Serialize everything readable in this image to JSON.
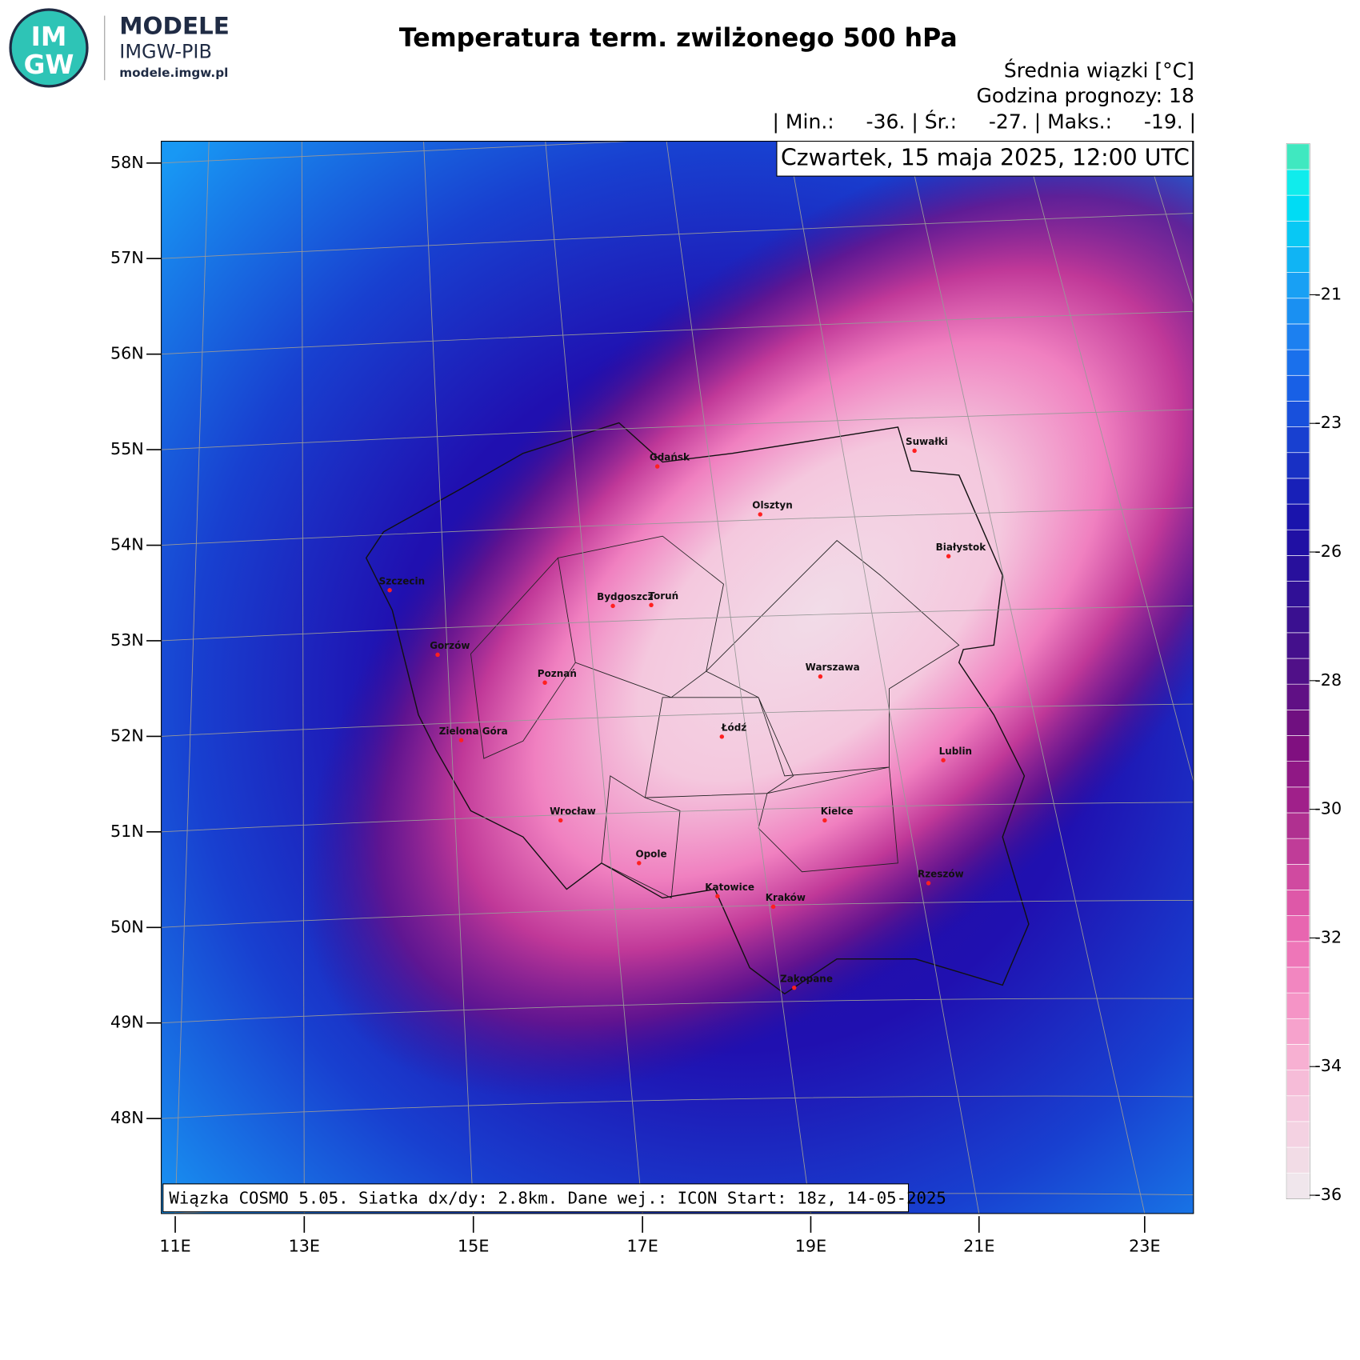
{
  "logo": {
    "abbr_top": "IM",
    "abbr_bottom": "GW",
    "name": "MODELE",
    "org": "IMGW-PIB",
    "url": "modele.imgw.pl"
  },
  "title": "Temperatura term. zwilżonego 500 hPa",
  "unit_line": "Średnia wiązki [°C]",
  "forecast_hour": "Godzina prognozy: 18",
  "stats_line": "| Min.:     -36. | Śr.:     -27. | Maks.:     -19. |",
  "date": "Czwartek, 15 maja 2025, 12:00 UTC",
  "footer": "Wiązka COSMO 5.05. Siatka dx/dy: 2.8km. Dane wej.: ICON Start: 18z, 14-05-2025",
  "lat_labels": [
    "58N",
    "57N",
    "56N",
    "55N",
    "54N",
    "53N",
    "52N",
    "51N",
    "50N",
    "49N",
    "48N"
  ],
  "lon_labels": [
    "11E",
    "13E",
    "15E",
    "17E",
    "19E",
    "21E",
    "23E"
  ],
  "cities": [
    "Gdańsk",
    "Olsztyn",
    "Suwałki",
    "Białystok",
    "Szczecin",
    "Bydgoszcz",
    "Toruń",
    "Gorzów",
    "Poznań",
    "Warszawa",
    "Zielona Góra",
    "Łódź",
    "Lublin",
    "Wrocław",
    "Kielce",
    "Opole",
    "Rzeszów",
    "Katowice",
    "Kraków",
    "Zakopane"
  ],
  "colorbar": {
    "ticks": [
      -36,
      -34,
      -32,
      -30,
      -28,
      -26,
      -23,
      -21
    ],
    "colors": [
      "#f0e6ec",
      "#f2dce6",
      "#f4d2e2",
      "#f5c8de",
      "#f6bcd8",
      "#f7b0d2",
      "#f6a2cc",
      "#f594c6",
      "#f286c0",
      "#ee76b8",
      "#e866b0",
      "#de58a8",
      "#d04aa0",
      "#c03c98",
      "#b03090",
      "#a0208a",
      "#901885",
      "#801080",
      "#701080",
      "#601085",
      "#501088",
      "#44108c",
      "#3a1090",
      "#301096",
      "#28109c",
      "#2010a4",
      "#1a14ac",
      "#1820b8",
      "#1830c4",
      "#1840d0",
      "#1850dc",
      "#1860e6",
      "#1a70ec",
      "#1c80f0",
      "#1a90f2",
      "#18a0f4",
      "#10b4f4",
      "#08c8f4",
      "#00dcf4",
      "#10ecec",
      "#40e8c0"
    ]
  }
}
